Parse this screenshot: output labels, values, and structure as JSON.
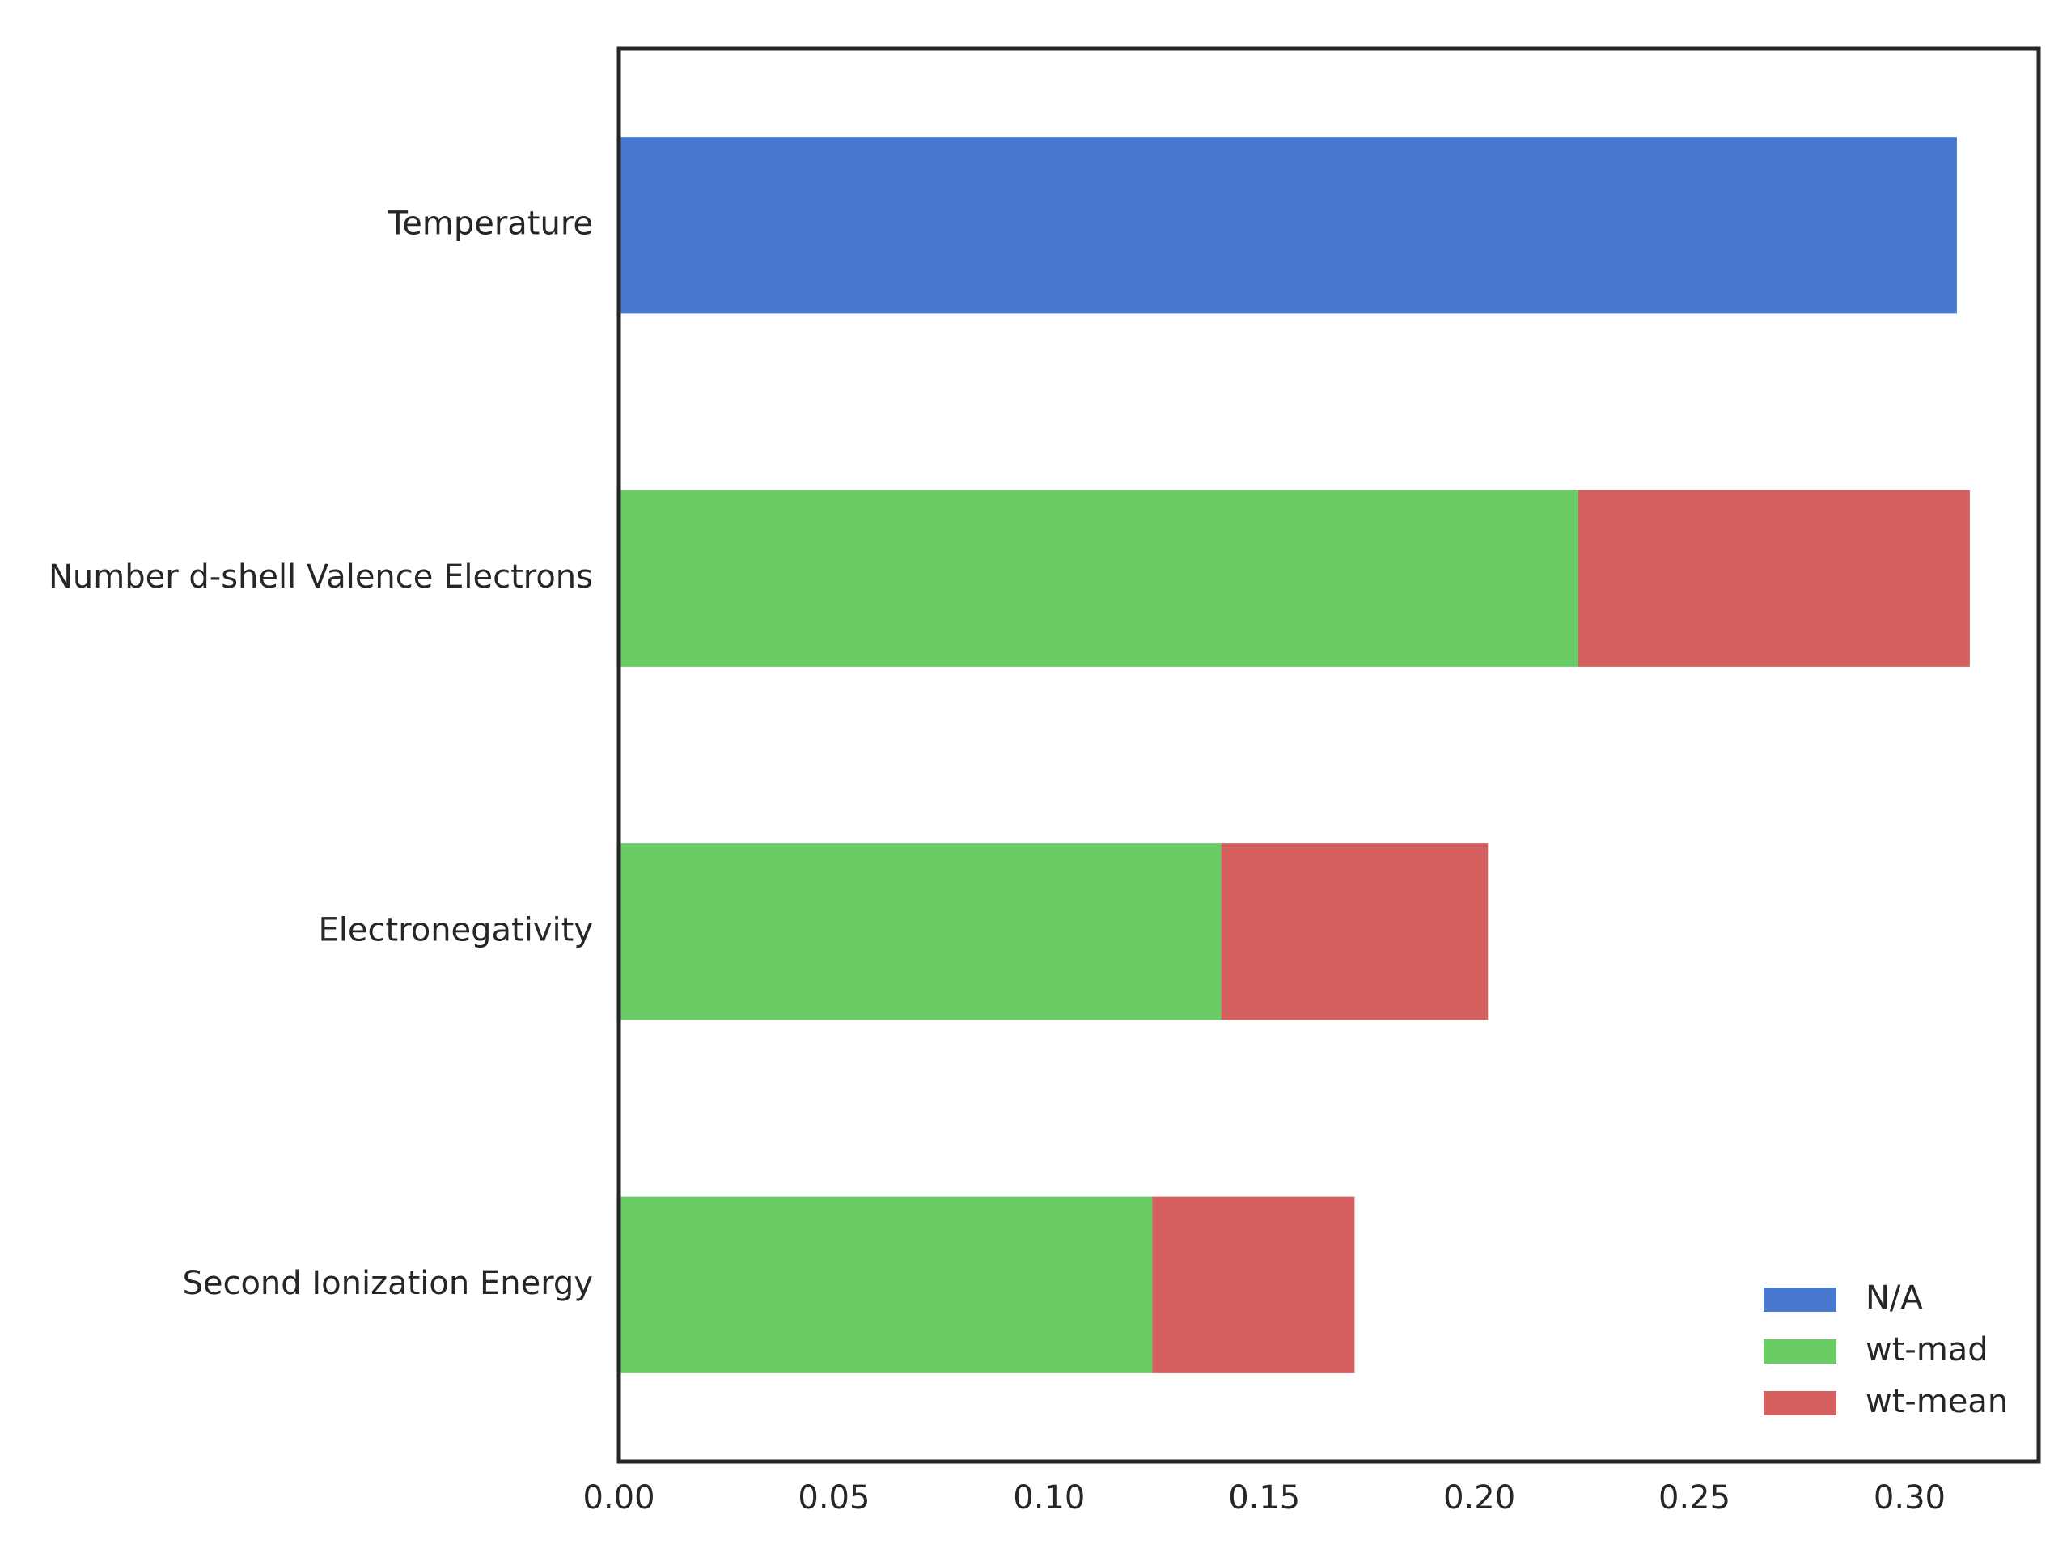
{
  "colors": {
    "background": "#ffffff",
    "frame": "#262626",
    "text": "#262626"
  },
  "chart_data": {
    "type": "bar",
    "orientation": "horizontal",
    "stacked": true,
    "title": "",
    "xlabel": "",
    "ylabel": "",
    "categories": [
      "Temperature",
      "Number d-shell Valence Electrons",
      "Electronegativity",
      "Second Ionization Energy"
    ],
    "series": [
      {
        "name": "N/A",
        "color": "#4878cf",
        "values": [
          0.311,
          0,
          0,
          0
        ]
      },
      {
        "name": "wt-mad",
        "color": "#6acc65",
        "values": [
          0,
          0.223,
          0.14,
          0.124
        ]
      },
      {
        "name": "wt-mean",
        "color": "#d65f5f",
        "values": [
          0,
          0.091,
          0.062,
          0.047
        ]
      }
    ],
    "xlim": [
      0,
      0.33
    ],
    "xticks": [
      0.0,
      0.05,
      0.1,
      0.15,
      0.2,
      0.25,
      0.3
    ],
    "xtick_labels": [
      "0.00",
      "0.05",
      "0.10",
      "0.15",
      "0.20",
      "0.25",
      "0.30"
    ],
    "grid": false,
    "legend": {
      "position": "lower right",
      "entries": [
        "N/A",
        "wt-mad",
        "wt-mean"
      ]
    }
  }
}
